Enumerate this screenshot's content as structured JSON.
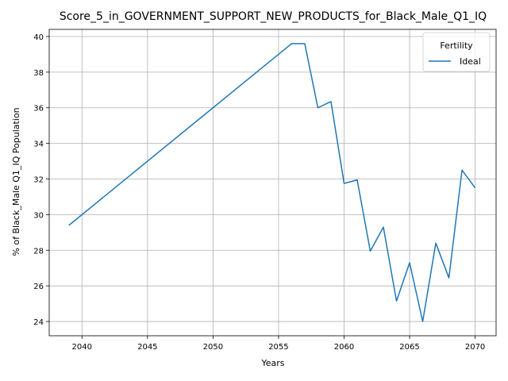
{
  "chart_data": {
    "type": "line",
    "title": "Score_5_in_GOVERNMENT_SUPPORT_NEW_PRODUCTS_for_Black_Male_Q1_IQ",
    "xlabel": "Years",
    "ylabel": "% of Black_Male Q1_IQ Population",
    "xlim": [
      2037.5,
      2071.6
    ],
    "ylim": [
      23.2,
      40.4
    ],
    "xticks": [
      2040,
      2045,
      2050,
      2055,
      2060,
      2065,
      2070
    ],
    "yticks": [
      24,
      26,
      28,
      30,
      32,
      34,
      36,
      38,
      40
    ],
    "grid": true,
    "legend": {
      "title": "Fertility",
      "placement": "top-right"
    },
    "series": [
      {
        "name": "Ideal",
        "color": "#1f77b4",
        "x": [
          2039,
          2056,
          2057,
          2058,
          2059,
          2060,
          2061,
          2062,
          2063,
          2064,
          2065,
          2066,
          2067,
          2068,
          2069,
          2070
        ],
        "y": [
          29.4,
          39.6,
          39.6,
          36.0,
          36.35,
          31.75,
          31.95,
          27.95,
          29.3,
          25.15,
          27.3,
          24.0,
          28.4,
          26.45,
          32.5,
          31.5
        ]
      }
    ]
  }
}
